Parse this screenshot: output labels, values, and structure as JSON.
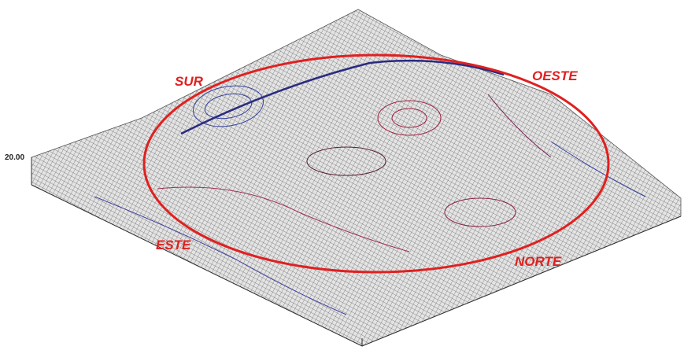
{
  "annotations": [
    "SUR",
    "OESTE",
    "ESTE",
    "NORTE"
  ],
  "z_axis": {
    "tick_label": "20.00"
  }
}
